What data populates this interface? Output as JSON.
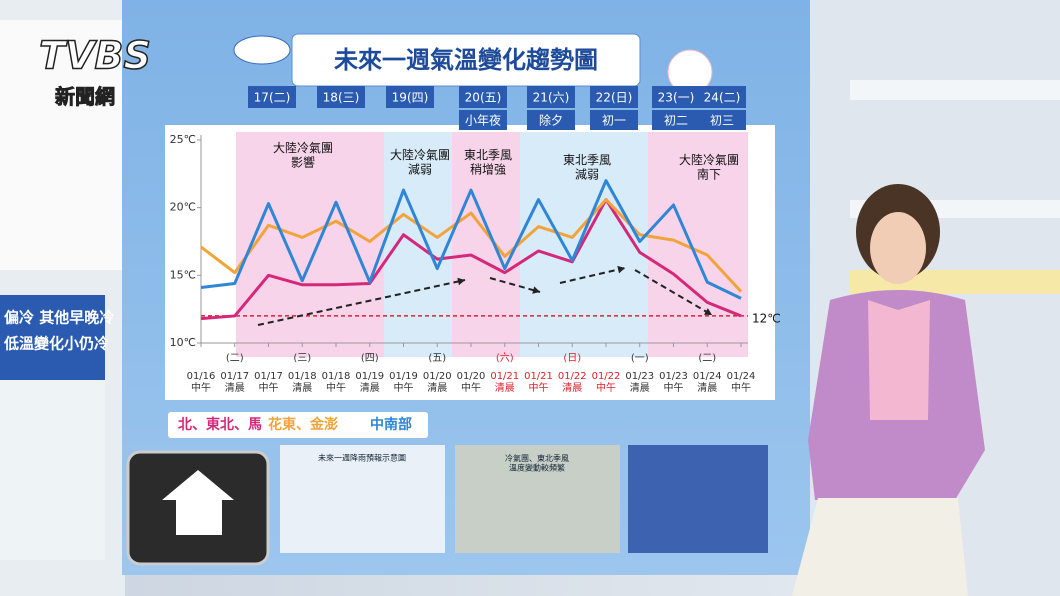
{
  "logo": {
    "brand": "TVBS",
    "sub": "新聞網"
  },
  "side_text": [
    "偏冷  其他早晚冷",
    "低溫變化小仍冷"
  ],
  "chart_data": {
    "type": "line",
    "title": "未來一週氣溫變化趨勢圖",
    "day_headers": [
      {
        "day": "17(二)"
      },
      {
        "day": "18(三)"
      },
      {
        "day": "19(四)"
      },
      {
        "day": "20(五)",
        "note": "小年夜"
      },
      {
        "day": "21(六)",
        "note": "除夕"
      },
      {
        "day": "22(日)",
        "note": "初一"
      },
      {
        "day": "23(一)",
        "note": "初二"
      },
      {
        "day": "24(二)",
        "note": "初三"
      }
    ],
    "annotations": [
      "大陸冷氣團\n影響",
      "大陸冷氣團\n減弱",
      "東北季風\n稍增強",
      "東北季風\n減弱",
      "大陸冷氣團\n南下"
    ],
    "categories": [
      "01/16\n中午",
      "01/17\n清晨",
      "01/17\n中午",
      "01/18\n清晨",
      "01/18\n中午",
      "01/19\n清晨",
      "01/19\n中午",
      "01/20\n清晨",
      "01/20\n中午",
      "01/21\n清晨",
      "01/21\n中午",
      "01/22\n清晨",
      "01/22\n中午",
      "01/23\n清晨",
      "01/23\n中午",
      "01/24\n清晨",
      "01/24\n中午"
    ],
    "weekdays": [
      null,
      "(二)",
      null,
      "(三)",
      null,
      "(四)",
      null,
      "(五)",
      null,
      "(六)",
      null,
      "(日)",
      null,
      "(一)",
      null,
      "(二)",
      null
    ],
    "category_colors": [
      "#333",
      "#333",
      "#333",
      "#333",
      "#333",
      "#333",
      "#333",
      "#333",
      "#333",
      "#e0202a",
      "#e0202a",
      "#e0202a",
      "#e0202a",
      "#333",
      "#333",
      "#333",
      "#333"
    ],
    "series": [
      {
        "name": "北、東北、馬",
        "color": "#d6287a",
        "values": [
          11.8,
          12.0,
          15.0,
          14.3,
          14.3,
          14.4,
          18.0,
          16.2,
          16.5,
          15.2,
          16.8,
          16.0,
          20.6,
          16.7,
          15.1,
          13.0,
          12.0
        ]
      },
      {
        "name": "花東、金澎",
        "color": "#f2a33a",
        "values": [
          17.1,
          15.2,
          18.7,
          17.8,
          19.0,
          17.5,
          19.5,
          17.8,
          19.6,
          16.4,
          18.6,
          17.8,
          20.6,
          18.0,
          17.6,
          16.5,
          13.8
        ]
      },
      {
        "name": "中南部",
        "color": "#2f86d6",
        "values": [
          14.1,
          14.4,
          20.3,
          14.6,
          20.4,
          14.5,
          21.3,
          15.5,
          21.3,
          15.5,
          20.6,
          16.1,
          22.0,
          17.5,
          20.2,
          14.5,
          13.3
        ]
      }
    ],
    "ylim": [
      10,
      25
    ],
    "yticks": [
      {
        "value": 10,
        "label": "10℃"
      },
      {
        "value": 15,
        "label": "15℃"
      },
      {
        "value": 20,
        "label": "20℃"
      },
      {
        "value": 25,
        "label": "25℃"
      }
    ],
    "reference_line": {
      "value": 12,
      "label": "12℃",
      "color": "#e0202a"
    },
    "grid": false
  },
  "thumbnails": [
    "未來一週降雨預報示意圖",
    "冷氣團、東北季風\n溫度變動較頻繁"
  ]
}
